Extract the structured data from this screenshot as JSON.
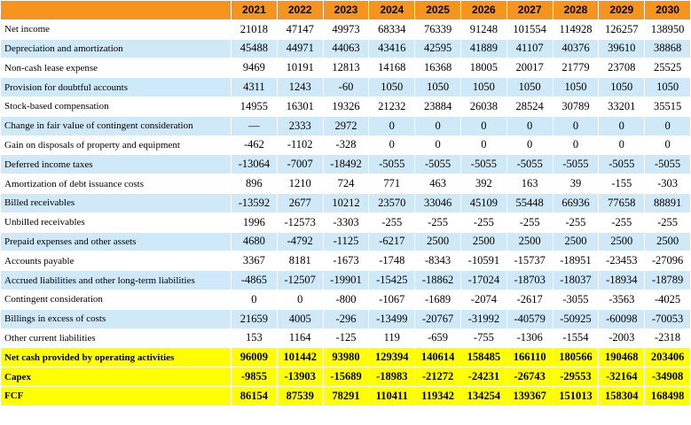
{
  "table": {
    "columns": [
      2021,
      2022,
      2023,
      2024,
      2025,
      2026,
      2027,
      2028,
      2029,
      2030
    ],
    "rows": [
      {
        "label": "Net income",
        "values": [
          21018,
          47147,
          49973,
          68334,
          76339,
          91248,
          101554,
          114928,
          126257,
          138950
        ]
      },
      {
        "label": "Depreciation and amortization",
        "values": [
          45488,
          44971,
          44063,
          43416,
          42595,
          41889,
          41107,
          40376,
          39610,
          38868
        ]
      },
      {
        "label": "Non-cash lease expense",
        "values": [
          9469,
          10191,
          12813,
          14168,
          16368,
          18005,
          20017,
          21779,
          23708,
          25525
        ]
      },
      {
        "label": "Provision for doubtful accounts",
        "values": [
          4311,
          1243,
          -60,
          1050,
          1050,
          1050,
          1050,
          1050,
          1050,
          1050
        ]
      },
      {
        "label": "Stock-based compensation",
        "values": [
          14955,
          16301,
          19326,
          21232,
          23884,
          26038,
          28524,
          30789,
          33201,
          35515
        ]
      },
      {
        "label": "Change in fair value of contingent consideration",
        "values": [
          "—",
          2333,
          2972,
          0,
          0,
          0,
          0,
          0,
          0,
          0
        ]
      },
      {
        "label": "Gain on disposals of property and equipment",
        "values": [
          -462,
          -1102,
          -328,
          0,
          0,
          0,
          0,
          0,
          0,
          0
        ]
      },
      {
        "label": "Deferred income taxes",
        "values": [
          -13064,
          -7007,
          -18492,
          -5055,
          -5055,
          -5055,
          -5055,
          -5055,
          -5055,
          -5055
        ]
      },
      {
        "label": "Amortization of debt issuance costs",
        "values": [
          896,
          1210,
          724,
          771,
          463,
          392,
          163,
          39,
          -155,
          -303
        ]
      },
      {
        "label": "Billed receivables",
        "values": [
          -13592,
          2677,
          10212,
          23570,
          33046,
          45109,
          55448,
          66936,
          77658,
          88891
        ]
      },
      {
        "label": "Unbilled receivables",
        "values": [
          1996,
          -12573,
          -3303,
          -255,
          -255,
          -255,
          -255,
          -255,
          -255,
          -255
        ]
      },
      {
        "label": "Prepaid expenses and other assets",
        "values": [
          4680,
          -4792,
          -1125,
          -6217,
          2500,
          2500,
          2500,
          2500,
          2500,
          2500
        ]
      },
      {
        "label": "Accounts payable",
        "values": [
          3367,
          8181,
          -1673,
          -1748,
          -8343,
          -10591,
          -15737,
          -18951,
          -23453,
          -27096
        ]
      },
      {
        "label": "Accrued liabilities and other long-term liabilities",
        "values": [
          -4865,
          -12507,
          -19901,
          -15425,
          -18862,
          -17024,
          -18703,
          -18037,
          -18934,
          -18789
        ]
      },
      {
        "label": "Contingent consideration",
        "values": [
          0,
          0,
          -800,
          -1067,
          -1689,
          -2074,
          -2617,
          -3055,
          -3563,
          -4025
        ]
      },
      {
        "label": "Billings in excess of costs",
        "values": [
          21659,
          4005,
          -296,
          -13499,
          -20767,
          -31992,
          -40579,
          -50925,
          -60098,
          -70053
        ]
      },
      {
        "label": "Other current liabilities",
        "values": [
          153,
          1164,
          -125,
          119,
          -659,
          -755,
          -1306,
          -1554,
          -2003,
          -2318
        ]
      },
      {
        "label": "Net cash provided by operating activities",
        "highlight": true,
        "values": [
          96009,
          101442,
          93980,
          129394,
          140614,
          158485,
          166110,
          180566,
          190468,
          203406
        ]
      },
      {
        "label": "Capex",
        "highlight": true,
        "values": [
          -9855,
          -13903,
          -15689,
          -18983,
          -21272,
          -24231,
          -26743,
          -29553,
          -32164,
          -34908
        ]
      },
      {
        "label": "FCF",
        "highlight": true,
        "values": [
          86154,
          87539,
          78291,
          110411,
          119342,
          134254,
          139367,
          151013,
          158304,
          168498
        ]
      }
    ]
  }
}
